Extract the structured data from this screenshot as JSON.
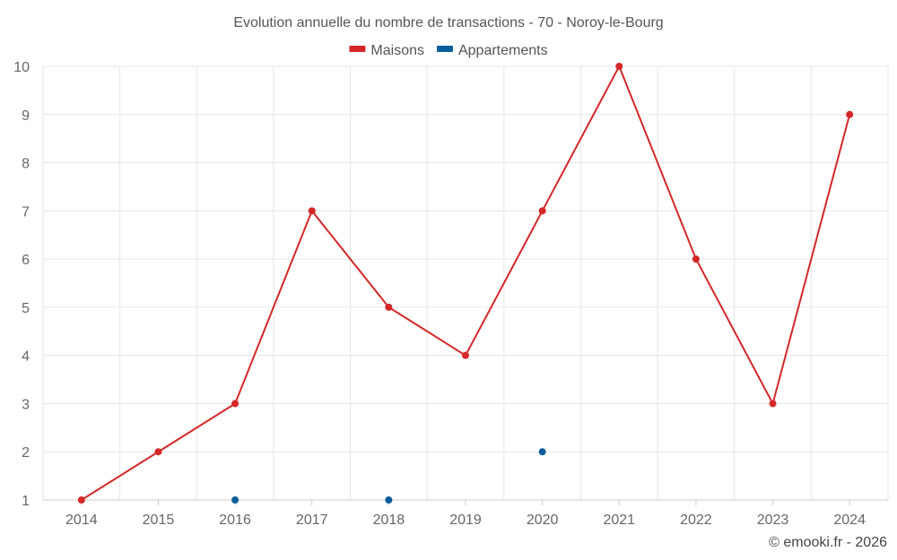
{
  "chart_data": {
    "type": "line",
    "title": "Evolution annuelle du nombre de transactions - 70 - Noroy-le-Bourg",
    "categories": [
      "2014",
      "2015",
      "2016",
      "2017",
      "2018",
      "2019",
      "2020",
      "2021",
      "2022",
      "2023",
      "2024"
    ],
    "series": [
      {
        "name": "Maisons",
        "color": "#d62728",
        "values": [
          1,
          2,
          3,
          7,
          5,
          4,
          7,
          10,
          6,
          3,
          9
        ]
      },
      {
        "name": "Appartements",
        "color": "#0a5e9c",
        "values": [
          null,
          null,
          1,
          null,
          1,
          null,
          2,
          null,
          null,
          null,
          null
        ]
      }
    ],
    "ylim": [
      1,
      10
    ],
    "yticks": [
      "1",
      "2",
      "3",
      "4",
      "5",
      "6",
      "7",
      "8",
      "9",
      "10"
    ],
    "xlabel": "",
    "ylabel": "",
    "grid": true,
    "legend_position": "top-center"
  },
  "credit": "© emooki.fr - 2026"
}
